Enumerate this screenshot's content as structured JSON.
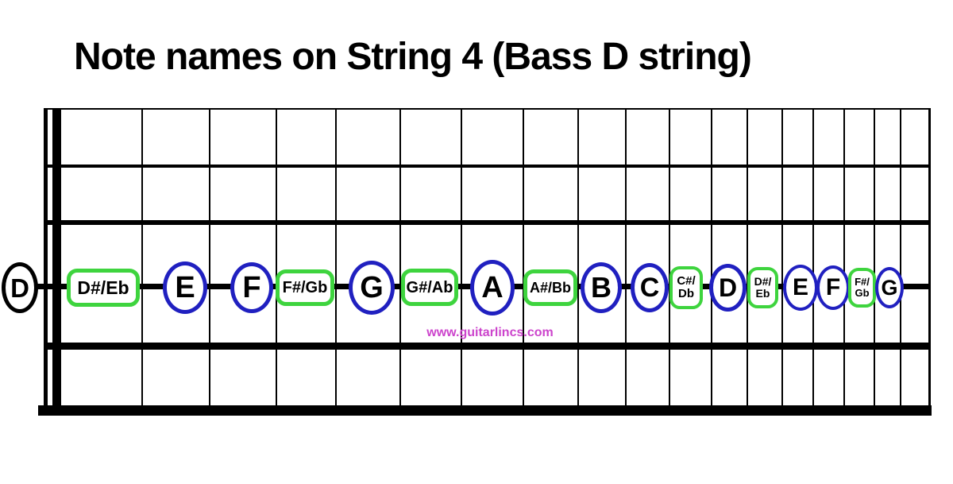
{
  "title": "Note names on String 4 (Bass D string)",
  "watermark": "www.guitarlincs.com",
  "colors": {
    "natural_ring": "#2020c0",
    "accidental_box": "#3ed43e",
    "open_ring": "#000000",
    "text": "#000000",
    "watermark": "#cc44cc"
  },
  "diagram": {
    "type": "guitar-fretboard",
    "string_shown": "String 4 (Bass D string)",
    "strings": 6,
    "frets_shown": 18
  },
  "notes": [
    {
      "name": "D",
      "fret": 0,
      "kind": "open",
      "lines": [
        "D"
      ]
    },
    {
      "name": "D#/Eb",
      "fret": 1,
      "kind": "sharp-flat",
      "lines": [
        "D#/Eb"
      ]
    },
    {
      "name": "E",
      "fret": 2,
      "kind": "natural",
      "lines": [
        "E"
      ]
    },
    {
      "name": "F",
      "fret": 3,
      "kind": "natural",
      "lines": [
        "F"
      ]
    },
    {
      "name": "F#/Gb",
      "fret": 4,
      "kind": "sharp-flat",
      "lines": [
        "F#/Gb"
      ]
    },
    {
      "name": "G",
      "fret": 5,
      "kind": "natural",
      "lines": [
        "G"
      ]
    },
    {
      "name": "G#/Ab",
      "fret": 6,
      "kind": "sharp-flat",
      "lines": [
        "G#/Ab"
      ]
    },
    {
      "name": "A",
      "fret": 7,
      "kind": "natural",
      "lines": [
        "A"
      ]
    },
    {
      "name": "A#/Bb",
      "fret": 8,
      "kind": "sharp-flat",
      "lines": [
        "A#/Bb"
      ]
    },
    {
      "name": "B",
      "fret": 9,
      "kind": "natural",
      "lines": [
        "B"
      ]
    },
    {
      "name": "C",
      "fret": 10,
      "kind": "natural",
      "lines": [
        "C"
      ]
    },
    {
      "name": "C#/Db",
      "fret": 11,
      "kind": "sharp-flat",
      "lines": [
        "C#/",
        "Db"
      ]
    },
    {
      "name": "D",
      "fret": 12,
      "kind": "natural",
      "lines": [
        "D"
      ]
    },
    {
      "name": "D#/Eb",
      "fret": 13,
      "kind": "sharp-flat",
      "lines": [
        "D#/",
        "Eb"
      ]
    },
    {
      "name": "E",
      "fret": 14,
      "kind": "natural",
      "lines": [
        "E"
      ]
    },
    {
      "name": "F",
      "fret": 15,
      "kind": "natural",
      "lines": [
        "F"
      ]
    },
    {
      "name": "F#/Gb",
      "fret": 16,
      "kind": "sharp-flat",
      "lines": [
        "F#/",
        "Gb"
      ]
    },
    {
      "name": "G",
      "fret": 17,
      "kind": "natural",
      "lines": [
        "G"
      ]
    }
  ]
}
